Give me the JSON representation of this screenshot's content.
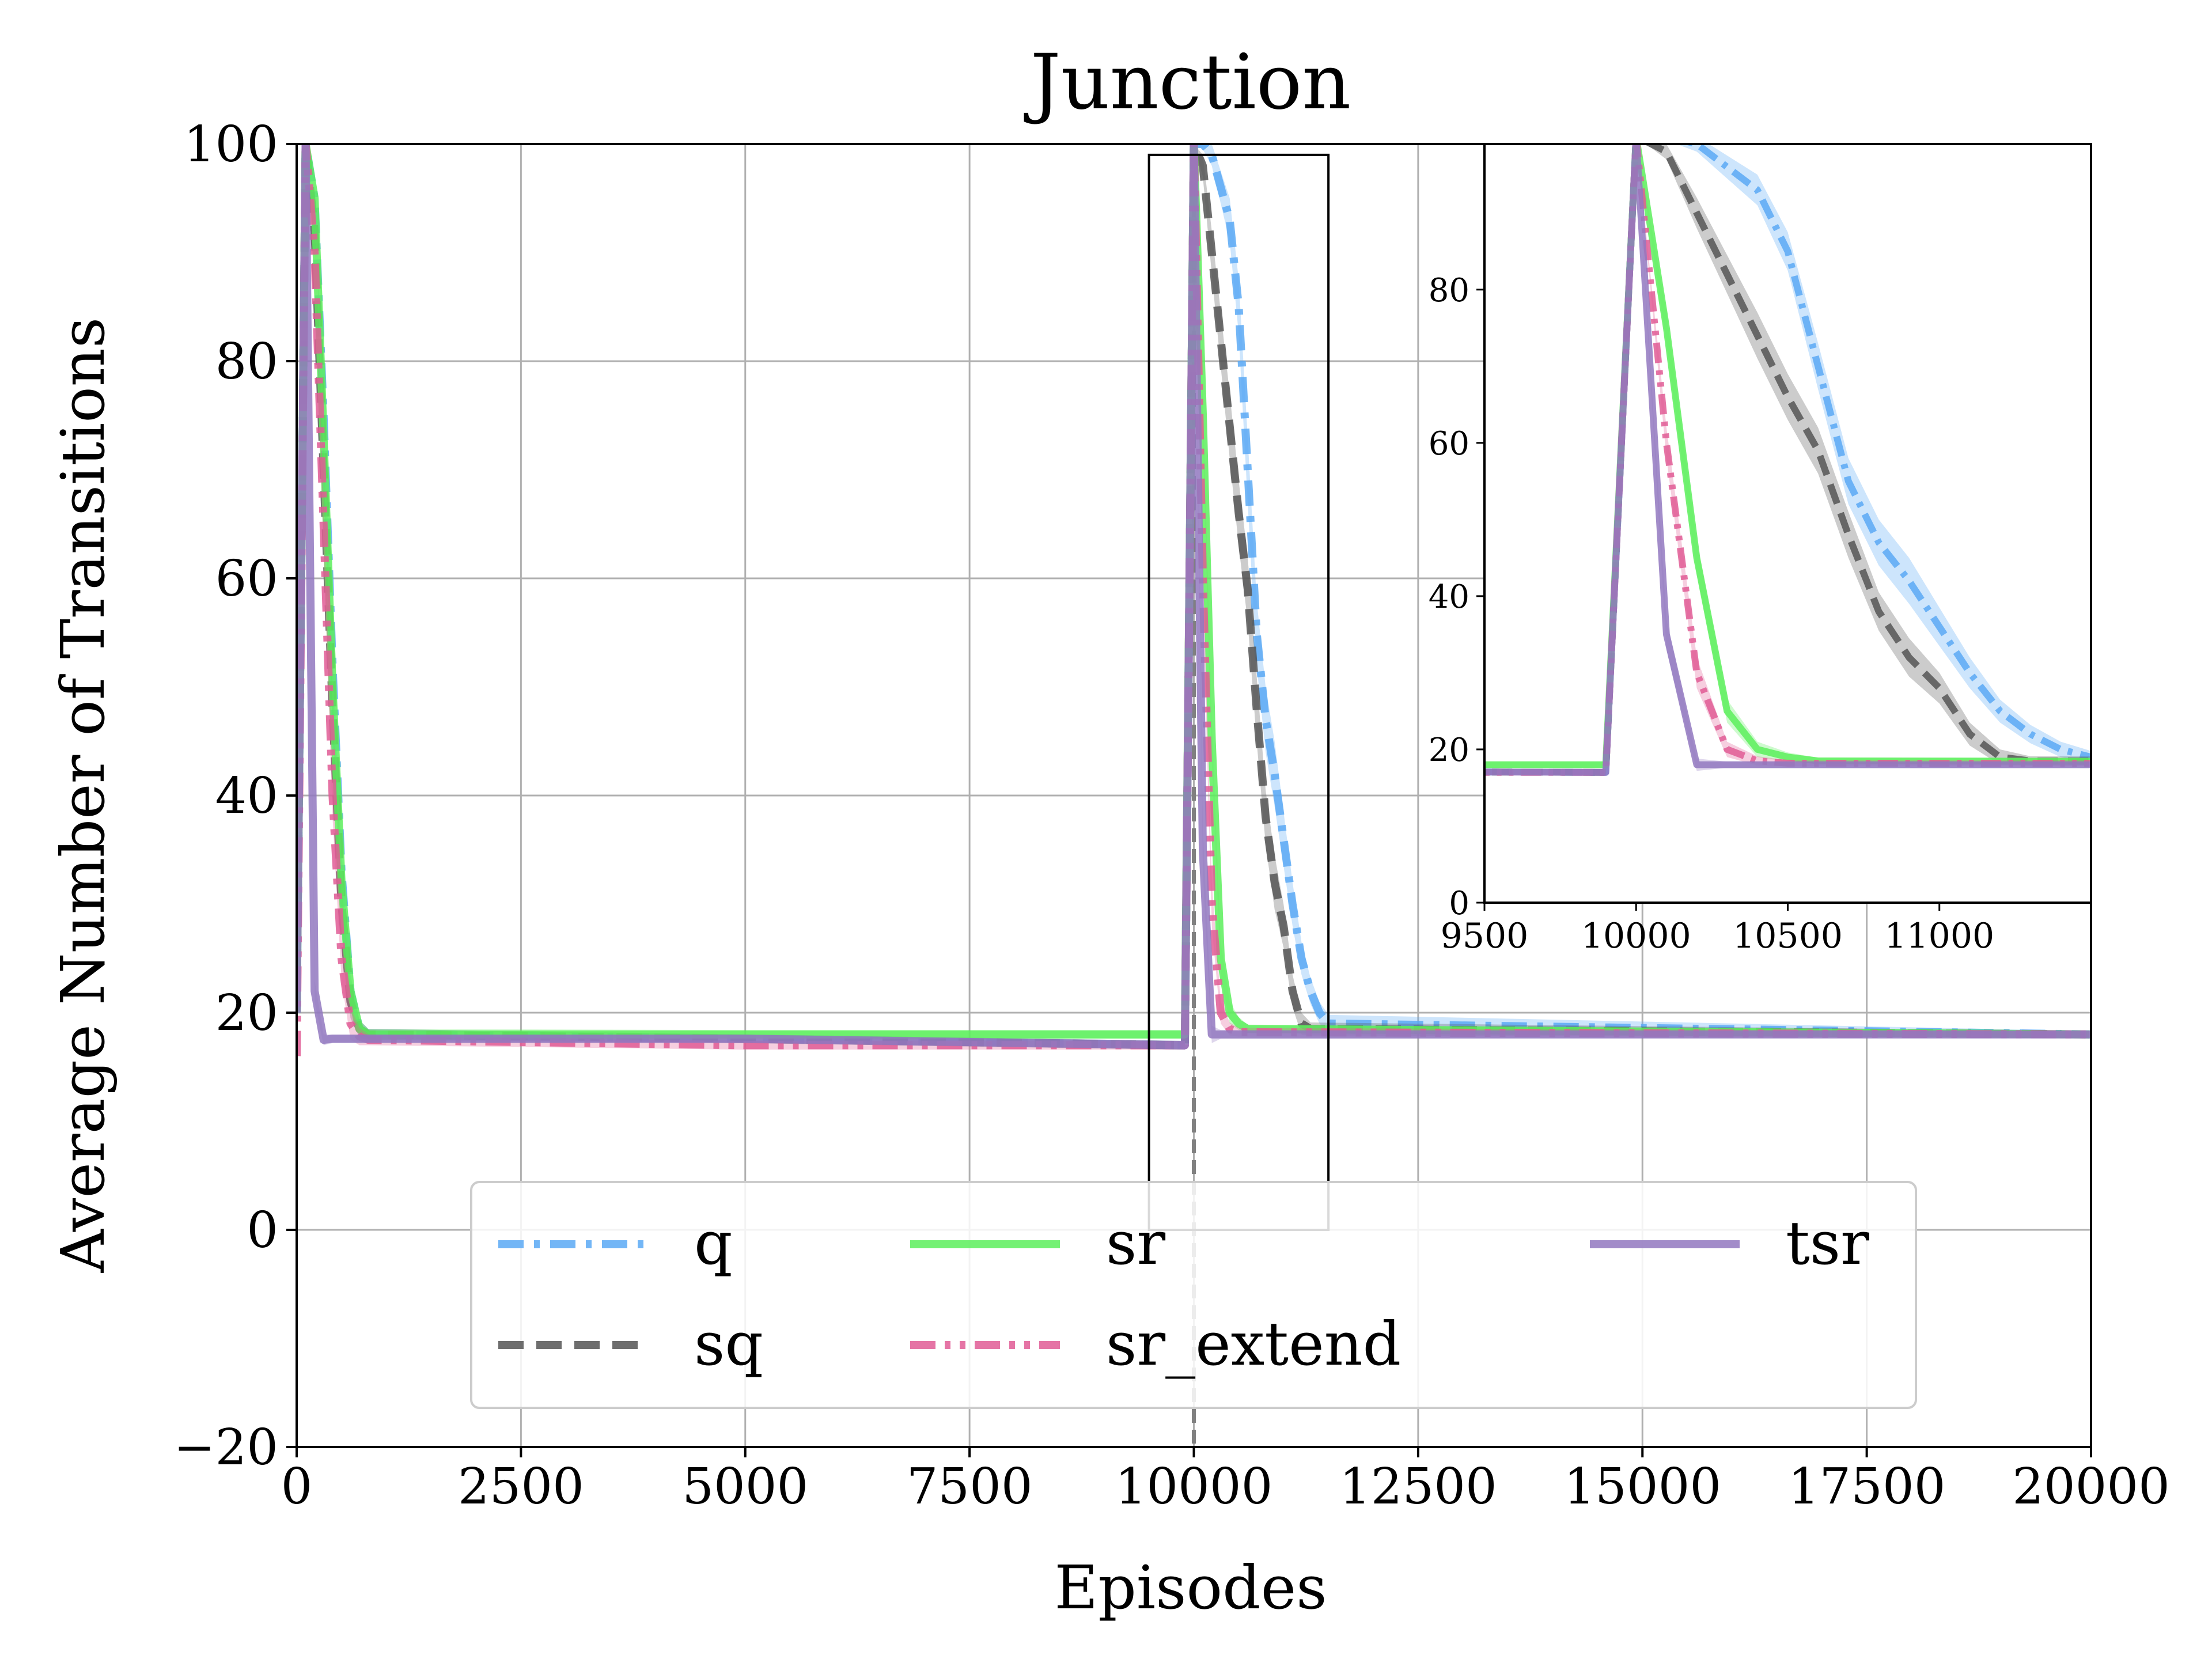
{
  "chart_data": {
    "type": "line",
    "title": "Junction",
    "xlabel": "Episodes",
    "ylabel": "Average Number of Transitions",
    "xlim": [
      0,
      20000
    ],
    "ylim": [
      -20,
      100
    ],
    "xticks": [
      0,
      2500,
      5000,
      7500,
      10000,
      12500,
      15000,
      17500,
      20000
    ],
    "yticks": [
      -20,
      0,
      20,
      40,
      60,
      80,
      100
    ],
    "x_tick_labels": [
      "0",
      "2500",
      "5000",
      "7500",
      "10000",
      "12500",
      "15000",
      "17500",
      "20000"
    ],
    "y_tick_labels": [
      "−20",
      "0",
      "20",
      "40",
      "60",
      "80",
      "100"
    ],
    "grid": true,
    "legend_position": "lower-center",
    "switch_line_x": 10000,
    "zoom_box": {
      "x": [
        9500,
        11500
      ],
      "y": [
        0,
        99
      ]
    },
    "series": [
      {
        "name": "q",
        "label": "q",
        "color": "#5aa9f5",
        "dash": "dashdot",
        "x": [
          0,
          100,
          200,
          300,
          400,
          500,
          600,
          700,
          800,
          5000,
          9900,
          10000,
          10100,
          10200,
          10300,
          10400,
          10500,
          10600,
          10700,
          10800,
          10900,
          11000,
          11100,
          11200,
          11300,
          11400,
          11500,
          20000
        ],
        "y": [
          20,
          100,
          95,
          75,
          52,
          33,
          22,
          18.5,
          18,
          17.6,
          17,
          100,
          100,
          99,
          96,
          93,
          85,
          70,
          55,
          47,
          42,
          36,
          30,
          25,
          22,
          20,
          19,
          18
        ],
        "band": [
          0,
          0,
          0,
          2,
          2,
          2,
          1.5,
          0.8,
          0.5,
          0.4,
          0.4,
          0,
          0.5,
          1,
          1.5,
          2,
          2.5,
          3,
          3,
          3,
          3,
          2.5,
          2,
          1.5,
          1.2,
          1,
          0.8,
          0.3
        ]
      },
      {
        "name": "sq",
        "label": "sq",
        "color": "#555555",
        "dash": "dash",
        "x": [
          0,
          100,
          200,
          300,
          400,
          500,
          600,
          700,
          800,
          5000,
          9900,
          10000,
          10100,
          10200,
          10300,
          10400,
          10500,
          10600,
          10700,
          10800,
          10900,
          11000,
          11100,
          11200,
          11300,
          20000
        ],
        "y": [
          20,
          100,
          92,
          70,
          48,
          30,
          21,
          18.5,
          18,
          17.6,
          17,
          100,
          98,
          90,
          82,
          74,
          66,
          59,
          48,
          38,
          32,
          28,
          22,
          19,
          18.5,
          18
        ],
        "band": [
          0,
          0,
          0,
          2,
          2,
          2,
          1.5,
          0.8,
          0.5,
          0.4,
          0.4,
          0,
          1,
          2,
          2.5,
          3,
          3,
          3,
          3,
          2.5,
          2.5,
          2,
          1.5,
          1,
          0.6,
          0.3
        ]
      },
      {
        "name": "sr",
        "label": "sr",
        "color": "#5cef5c",
        "dash": "solid",
        "x": [
          0,
          100,
          200,
          300,
          400,
          500,
          600,
          700,
          800,
          5000,
          9900,
          10000,
          10100,
          10200,
          10300,
          10400,
          10500,
          10600,
          20000
        ],
        "y": [
          20,
          100,
          95,
          73,
          50,
          32,
          22,
          18.5,
          18,
          18,
          18,
          100,
          75,
          45,
          25,
          20,
          19,
          18.5,
          18
        ],
        "band": [
          0,
          0,
          0,
          2,
          2,
          2,
          1.5,
          0.8,
          0.5,
          0.4,
          0.4,
          0,
          2,
          2,
          1.5,
          1,
          0.6,
          0.4,
          0.3
        ]
      },
      {
        "name": "sr_extend",
        "label": "sr_extend",
        "color": "#e05c95",
        "dash": "dashdotdot",
        "x": [
          0,
          100,
          200,
          300,
          400,
          500,
          600,
          700,
          800,
          5000,
          9900,
          10000,
          10100,
          10200,
          10300,
          10400,
          10500,
          20000
        ],
        "y": [
          16,
          100,
          90,
          65,
          40,
          25,
          19,
          17.8,
          17.5,
          17,
          17,
          100,
          60,
          30,
          20,
          18.5,
          18.2,
          18
        ],
        "band": [
          0,
          0,
          0,
          2,
          2,
          2,
          1.5,
          0.8,
          0.5,
          0.4,
          0.4,
          0,
          2,
          2,
          1,
          0.6,
          0.4,
          0.3
        ]
      },
      {
        "name": "tsr",
        "label": "tsr",
        "color": "#9278c0",
        "dash": "solid",
        "x": [
          0,
          100,
          200,
          300,
          400,
          500,
          5000,
          9900,
          10000,
          10100,
          10200,
          10300,
          20000
        ],
        "y": [
          20,
          100,
          22,
          17.5,
          17.6,
          17.6,
          17.6,
          17,
          100,
          35,
          18,
          18,
          18
        ],
        "band": [
          0,
          0,
          1,
          0.5,
          0.4,
          0.4,
          0.4,
          0.4,
          0,
          2,
          0.8,
          0.4,
          0.3
        ]
      }
    ],
    "inset": {
      "xlim": [
        9500,
        11500
      ],
      "ylim": [
        0,
        99
      ],
      "xticks": [
        9500,
        10000,
        10500,
        11000
      ],
      "yticks": [
        0,
        20,
        40,
        60,
        80
      ],
      "x_tick_labels": [
        "9500",
        "10000",
        "10500",
        "11000"
      ],
      "y_tick_labels": [
        "0",
        "20",
        "40",
        "60",
        "80"
      ]
    }
  }
}
